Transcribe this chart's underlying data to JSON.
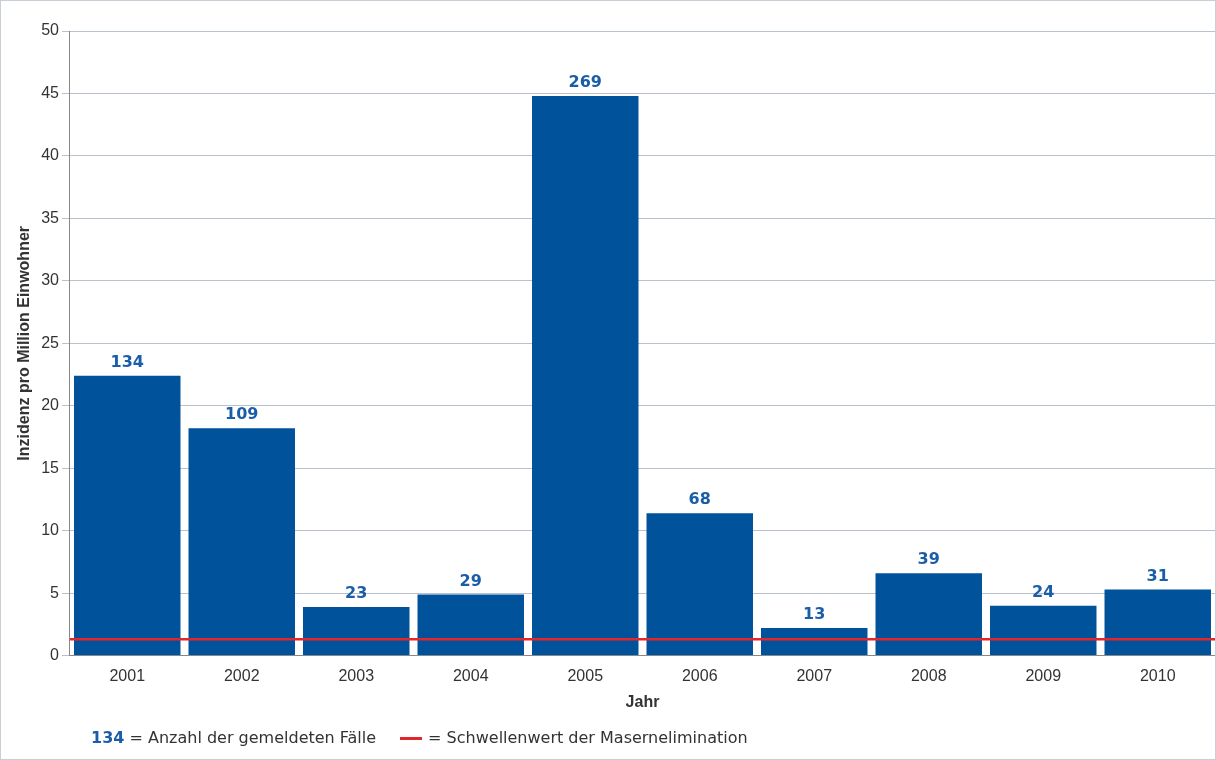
{
  "chart_data": {
    "type": "bar",
    "xlabel": "Jahr",
    "ylabel": "Inzidenz pro Million Einwohner",
    "categories": [
      "2001",
      "2002",
      "2003",
      "2004",
      "2005",
      "2006",
      "2007",
      "2008",
      "2009",
      "2010"
    ],
    "values": [
      22.4,
      18.2,
      3.9,
      4.9,
      44.8,
      11.4,
      2.2,
      6.6,
      4.0,
      5.3
    ],
    "color": "#00529b",
    "ylim": [
      0,
      50
    ],
    "yticks": [
      0,
      5,
      10,
      15,
      20,
      25,
      30,
      35,
      40,
      45,
      50
    ],
    "grid": "y",
    "ref_lines": [
      {
        "axis": "y",
        "value": 1.3,
        "label": "= Schwellenwert der Masernelimination",
        "color": "#e3262b"
      }
    ],
    "annotations": [
      "134 = Anzahl der gemeldeten Fälle",
      {
        "text": "134",
        "x": "2001",
        "y": 22.4
      },
      {
        "text": "109",
        "x": "2002",
        "y": 18.2
      },
      {
        "text": "23",
        "x": "2003",
        "y": 3.9
      },
      {
        "text": "29",
        "x": "2004",
        "y": 4.9
      },
      {
        "text": "269",
        "x": "2005",
        "y": 44.8
      },
      {
        "text": "68",
        "x": "2006",
        "y": 11.4
      },
      {
        "text": "13",
        "x": "2007",
        "y": 2.2
      },
      {
        "text": "39",
        "x": "2008",
        "y": 6.6
      },
      {
        "text": "24",
        "x": "2009",
        "y": 4.0
      },
      {
        "text": "31",
        "x": "2010",
        "y": 5.3
      }
    ]
  }
}
